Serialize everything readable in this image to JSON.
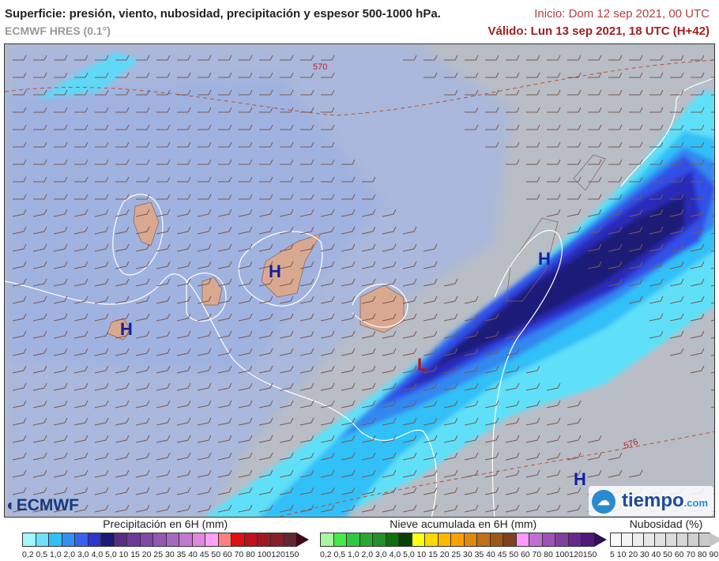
{
  "header": {
    "title": "Superficie: presión, viento, nubosidad, precipitación y espesor 500-1000 hPa.",
    "model": "ECMWF HRES (0.1°)",
    "init": "Inicio: Dom 12 sep 2021, 00 UTC",
    "valid": "Válido: Lun 13 sep 2021, 18 UTC (H+42)"
  },
  "map": {
    "pressure_centers": [
      {
        "label": "H",
        "type": "high"
      },
      {
        "label": "H",
        "type": "high"
      },
      {
        "label": "H",
        "type": "high"
      },
      {
        "label": "H",
        "type": "high"
      },
      {
        "label": "L",
        "type": "low"
      }
    ],
    "thickness_labels": [
      "570",
      "576"
    ],
    "colors": {
      "high": "#1020a0",
      "low": "#c01010",
      "thickness": "#c04030",
      "precip_core": "#1a1a80"
    }
  },
  "logos": {
    "ecmwf": "ECMWF",
    "tiempo": "tiempo",
    "tiempo_suffix": ".com"
  },
  "legends": {
    "precip": {
      "title": "Precipitación en 6H (mm)",
      "labels": "0,2 0,5 1,0 2,0 3,0 4,0 5,0 10 15 20 25 30 35 40 45 50 60 70 80 100120150",
      "colors": [
        "#9ff8ff",
        "#6ee0fa",
        "#30c0f8",
        "#3090f0",
        "#3860f0",
        "#2838d0",
        "#1a1a78",
        "#5a2a88",
        "#6e3a98",
        "#8048a8",
        "#9458b0",
        "#a868c0",
        "#c078d0",
        "#e088e0",
        "#ffa0f8",
        "#ff8080",
        "#e01010",
        "#c01020",
        "#a01820",
        "#882028",
        "#602830"
      ],
      "arrow": "#400818"
    },
    "snow": {
      "title": "Nieve acumulada en 6H (mm)",
      "labels": "0,2 0,5 1,0 2,0 3,0 4,0 5,0 10 15 20 25 30 35 40 45 50 60 70 80 100120150",
      "colors": [
        "#a8f8a0",
        "#48e848",
        "#30c840",
        "#28a830",
        "#209028",
        "#107010",
        "#084008",
        "#ffff10",
        "#ffd800",
        "#ffb800",
        "#ffa000",
        "#e08810",
        "#c07018",
        "#a05818",
        "#804020",
        "#ff98ff",
        "#c070d0",
        "#a050b8",
        "#8040a0",
        "#682890",
        "#501878"
      ],
      "arrow": "#301050"
    },
    "clouds": {
      "title": "Nubosidad (%)",
      "labels": "5 10 20 30 40 50 60 70 80 90",
      "colors": [
        "#fafafa",
        "#f4f4f4",
        "#eeeeee",
        "#e8e8e8",
        "#e2e2e2",
        "#dcdcdc",
        "#d6d6d6",
        "#d0d0d0",
        "#cacaca"
      ],
      "arrow": "#c4c4c4"
    }
  }
}
